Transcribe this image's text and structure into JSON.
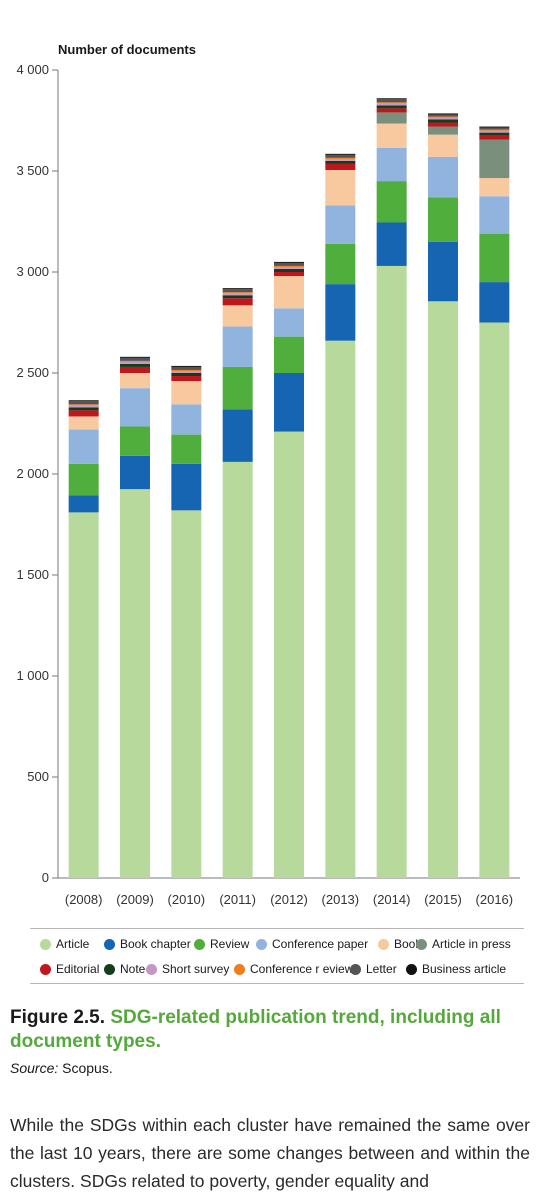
{
  "chart_data": {
    "type": "bar",
    "stacked": true,
    "ylabel": "Number of documents",
    "xlabel": "",
    "ylim": [
      0,
      4000
    ],
    "yticks": [
      0,
      500,
      1000,
      1500,
      2000,
      2500,
      3000,
      3500,
      4000
    ],
    "ytick_labels": [
      "0",
      "500",
      "1 000",
      "1 500",
      "2 000",
      "2 500",
      "3 000",
      "3 500",
      "4 000"
    ],
    "categories": [
      "(2008)",
      "(2009)",
      "(2010)",
      "(2011)",
      "(2012)",
      "(2013)",
      "(2014)",
      "(2015)",
      "(2016)"
    ],
    "grid": false,
    "legend_position": "bottom",
    "series": [
      {
        "name": "Article",
        "color": "#b8d99c",
        "values": [
          1810,
          1925,
          1820,
          2060,
          2210,
          2660,
          3030,
          2855,
          2750
        ]
      },
      {
        "name": "Book chapter",
        "color": "#1565b3",
        "values": [
          85,
          165,
          230,
          260,
          290,
          280,
          215,
          295,
          200
        ]
      },
      {
        "name": "Review",
        "color": "#4fae3c",
        "values": [
          155,
          145,
          145,
          210,
          180,
          200,
          205,
          220,
          240
        ]
      },
      {
        "name": "Conference paper",
        "color": "#91b4df",
        "values": [
          170,
          190,
          150,
          200,
          140,
          190,
          165,
          200,
          185
        ]
      },
      {
        "name": "Book",
        "color": "#f8c89e",
        "values": [
          65,
          75,
          115,
          105,
          160,
          175,
          120,
          110,
          90
        ]
      },
      {
        "name": "Article in press",
        "color": "#7a907d",
        "values": [
          0,
          0,
          0,
          0,
          0,
          0,
          55,
          40,
          190
        ]
      },
      {
        "name": "Editorial",
        "color": "#c0161d",
        "values": [
          30,
          30,
          25,
          35,
          20,
          30,
          20,
          20,
          20
        ]
      },
      {
        "name": "Note",
        "color": "#143d1c",
        "values": [
          15,
          15,
          15,
          15,
          15,
          15,
          15,
          15,
          15
        ]
      },
      {
        "name": "Short survey",
        "color": "#c497c7",
        "values": [
          10,
          10,
          10,
          10,
          10,
          10,
          10,
          10,
          10
        ]
      },
      {
        "name": "Conference r eview",
        "color": "#ee7d1a",
        "values": [
          5,
          5,
          5,
          5,
          5,
          5,
          5,
          5,
          5
        ]
      },
      {
        "name": "Letter",
        "color": "#555555",
        "values": [
          15,
          15,
          15,
          15,
          15,
          15,
          15,
          10,
          10
        ]
      },
      {
        "name": "Business article",
        "color": "#111111",
        "values": [
          5,
          5,
          5,
          5,
          5,
          5,
          5,
          5,
          5
        ]
      }
    ]
  },
  "caption": {
    "figure_label": "Figure 2.5.",
    "title": "SDG-related publication trend, including all document types."
  },
  "source": {
    "label": "Source:",
    "value": "Scopus."
  },
  "body_text": "While the SDGs within each cluster have remained the same over the last 10 years, there are some changes between and within the clusters. SDGs related to poverty, gender equality and"
}
